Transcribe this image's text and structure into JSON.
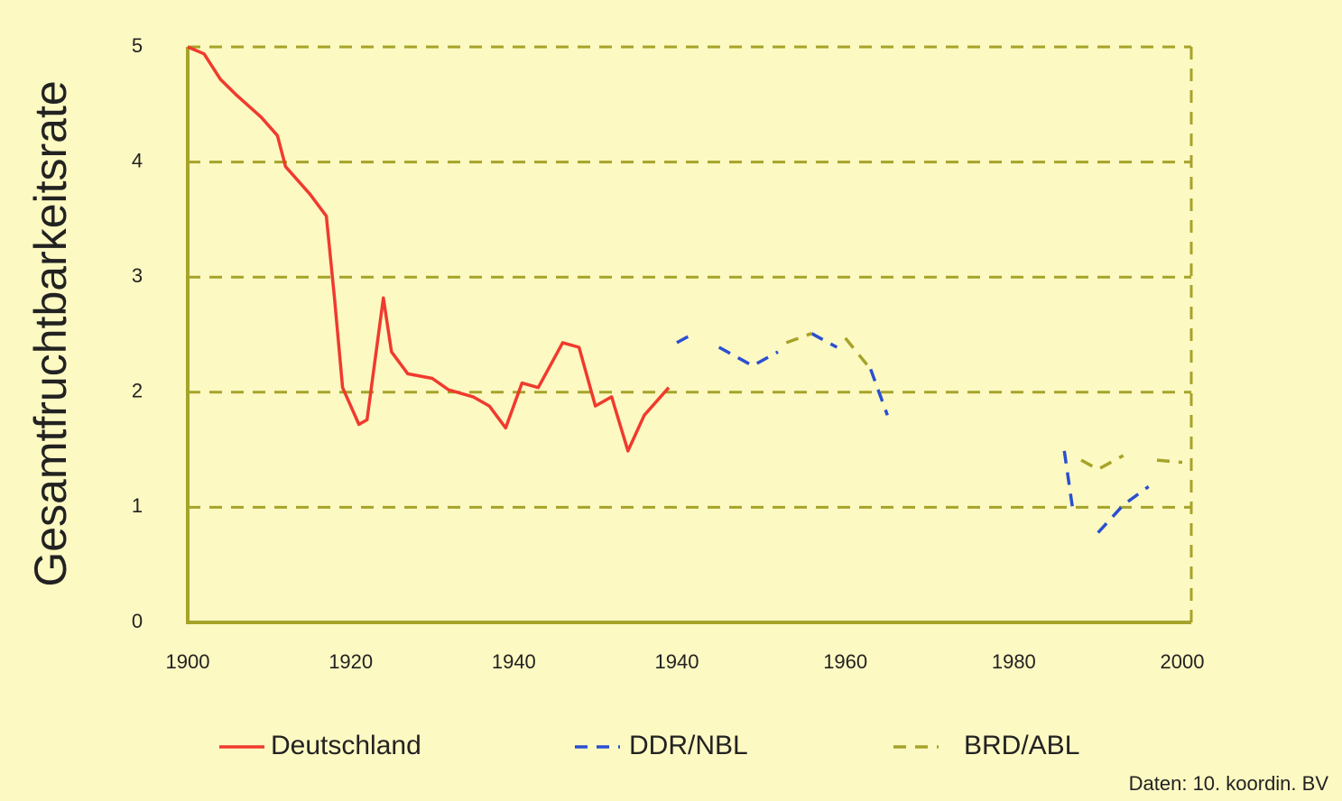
{
  "chart_data": [
    {
      "type": "line",
      "ylabel": "Gesamtfruchtbarkeitsrate",
      "ylim": [
        0,
        5
      ],
      "yticks": [
        0,
        1,
        2,
        3,
        4,
        5
      ],
      "grid": true,
      "xlim": [
        1900,
        1960
      ],
      "xticks": [
        1900,
        1920,
        1940
      ],
      "x": [
        1900,
        1902,
        1904,
        1906,
        1909,
        1911,
        1912,
        1915,
        1917,
        1918,
        1919,
        1921,
        1922,
        1924,
        1925,
        1927,
        1930,
        1932,
        1935,
        1937,
        1939,
        1941,
        1943,
        1946,
        1948,
        1950,
        1952,
        1954,
        1956,
        1959
      ],
      "series": [
        {
          "name": "Deutschland",
          "color": "#f03a2e",
          "dash": false,
          "values": [
            5.0,
            4.94,
            4.72,
            4.58,
            4.39,
            4.23,
            3.96,
            3.72,
            3.53,
            2.82,
            2.04,
            1.72,
            1.76,
            2.82,
            2.35,
            2.16,
            2.12,
            2.02,
            1.96,
            1.88,
            1.69,
            2.08,
            2.04,
            2.43,
            2.39,
            1.88,
            1.96,
            1.49,
            1.8,
            2.04
          ]
        }
      ]
    },
    {
      "type": "line",
      "xlim": [
        1940,
        2000
      ],
      "xticks": [
        1940,
        1960,
        1980,
        2000
      ],
      "x": [
        1940,
        1942,
        1944,
        1945,
        1949,
        1952,
        1953,
        1956,
        1959,
        1960,
        1963,
        1965,
        1966,
        1967,
        1968,
        1971,
        1972,
        1974,
        1975,
        1978,
        1980,
        1982,
        1984,
        1986,
        1987,
        1988,
        1990,
        1993,
        1996,
        1997,
        2000
      ],
      "series": [
        {
          "name": "DDR/NBL",
          "color": "#2a4fd0",
          "dash": true,
          "values": [
            2.43,
            2.51,
            null,
            2.39,
            2.23,
            2.35,
            null,
            2.51,
            2.39,
            null,
            2.2,
            1.8,
            null,
            1.53,
            null,
            1.88,
            null,
            1.96,
            null,
            1.8,
            null,
            1.72,
            null,
            1.49,
            0.98,
            null,
            0.78,
            1.02,
            1.18,
            null,
            1.25
          ]
        },
        {
          "name": "BRD/ABL",
          "color": "#a6a32a",
          "dash": true,
          "values": [
            2.08,
            null,
            2.16,
            null,
            2.31,
            null,
            2.43,
            2.51,
            null,
            2.47,
            2.2,
            null,
            1.65,
            null,
            1.49,
            null,
            1.37,
            null,
            1.45,
            null,
            1.25,
            null,
            1.41,
            null,
            null,
            1.41,
            1.33,
            1.45,
            null,
            1.41,
            1.39
          ]
        }
      ]
    }
  ],
  "source": "Daten: 10. koordin. BV"
}
